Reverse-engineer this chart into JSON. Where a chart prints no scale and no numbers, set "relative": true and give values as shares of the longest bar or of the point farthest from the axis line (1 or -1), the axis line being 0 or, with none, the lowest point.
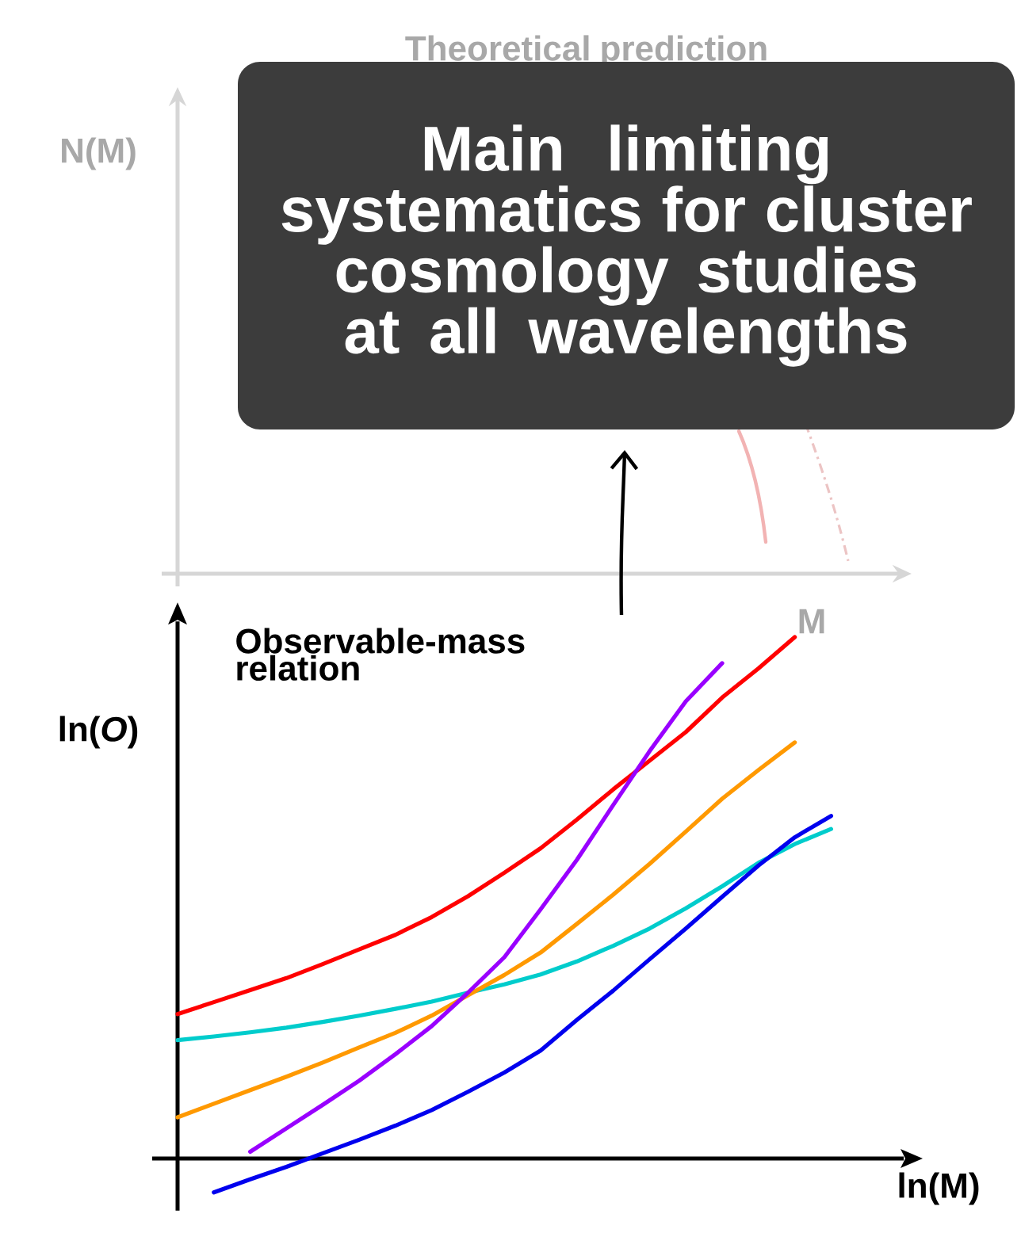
{
  "chart_data": [
    {
      "type": "other",
      "title": "Theoretical prediction",
      "xlabel": "M",
      "ylabel": "N(M)",
      "annotations": [
        "Main limiting systematics for cluster cosmology studies at all wavelengths"
      ]
    },
    {
      "type": "line",
      "title": "Observable-mass relation",
      "xlabel": "ln(M)",
      "ylabel": "ln(*O*)",
      "relative": true,
      "marker": "none",
      "categories": [
        null,
        null,
        null,
        null,
        null,
        null,
        null,
        null,
        null,
        null,
        null,
        null,
        null,
        null,
        null,
        null,
        null,
        null,
        null,
        null
      ],
      "series": [
        {
          "color": "#ff0000",
          "values": [
            0.277,
            0.3,
            0.323,
            0.346,
            0.373,
            0.401,
            0.429,
            0.463,
            0.503,
            0.548,
            0.595,
            0.65,
            0.708,
            0.763,
            0.818,
            0.884,
            0.94,
            1,
            null,
            null
          ]
        },
        {
          "color": "#00cccc",
          "values": [
            0.227,
            0.234,
            0.242,
            0.251,
            0.262,
            0.274,
            0.287,
            0.301,
            0.318,
            0.334,
            0.353,
            0.378,
            0.408,
            0.441,
            0.48,
            0.522,
            0.567,
            0.603,
            0.632,
            null
          ]
        },
        {
          "color": "#ff9900",
          "values": [
            0.079,
            0.105,
            0.131,
            0.157,
            0.184,
            0.213,
            0.241,
            0.274,
            0.313,
            0.352,
            0.395,
            0.45,
            0.506,
            0.565,
            0.627,
            0.69,
            0.745,
            0.798,
            null,
            null
          ]
        },
        {
          "color": "#9900ff",
          "values": [
            null,
            null,
            0.013,
            0.058,
            0.103,
            0.149,
            0.2,
            0.254,
            0.318,
            0.386,
            0.478,
            0.573,
            0.678,
            0.781,
            0.877,
            0.95,
            null,
            null,
            null,
            null
          ]
        },
        {
          "color": "#0000ee",
          "values": [
            null,
            -0.065,
            -0.04,
            -0.016,
            0.01,
            0.036,
            0.063,
            0.093,
            0.128,
            0.165,
            0.207,
            0.266,
            0.322,
            0.382,
            0.441,
            0.502,
            0.562,
            0.616,
            0.657,
            null
          ]
        }
      ]
    }
  ]
}
